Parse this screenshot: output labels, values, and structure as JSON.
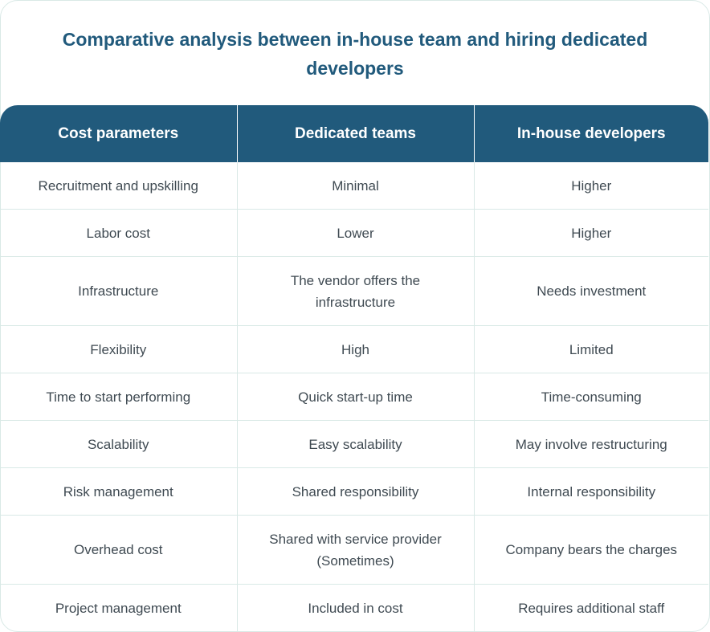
{
  "title": "Comparative analysis between in-house team and hiring dedicated developers",
  "headers": [
    "Cost parameters",
    "Dedicated teams",
    "In-house developers"
  ],
  "rows": [
    [
      "Recruitment and upskilling",
      "Minimal",
      "Higher"
    ],
    [
      "Labor cost",
      "Lower",
      "Higher"
    ],
    [
      "Infrastructure",
      "The vendor offers the infrastructure",
      "Needs investment"
    ],
    [
      "Flexibility",
      "High",
      "Limited"
    ],
    [
      "Time to start performing",
      "Quick start-up time",
      "Time-consuming"
    ],
    [
      "Scalability",
      "Easy scalability",
      "May involve restructuring"
    ],
    [
      "Risk management",
      "Shared responsibility",
      "Internal responsibility"
    ],
    [
      "Overhead cost",
      "Shared with service provider (Sometimes)",
      "Company bears the charges"
    ],
    [
      "Project management",
      "Included in cost",
      "Requires additional staff"
    ]
  ],
  "colors": {
    "header_bg": "#215a7c",
    "title": "#215a7c",
    "border": "#d9e9e6",
    "text": "#3f4a52"
  }
}
